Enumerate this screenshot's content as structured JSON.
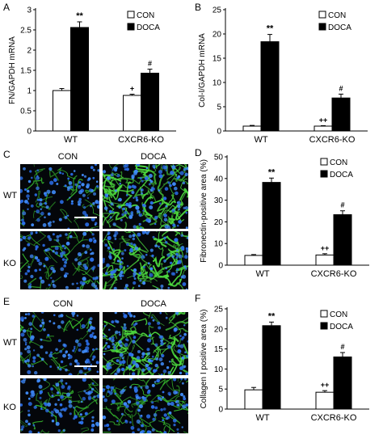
{
  "panel_letters": [
    "A",
    "B",
    "C",
    "D",
    "E",
    "F"
  ],
  "micrographs": {
    "C": {
      "col_labels": [
        "CON",
        "DOCA"
      ],
      "row_labels": [
        "WT",
        "KO"
      ]
    },
    "E": {
      "col_labels": [
        "CON",
        "DOCA"
      ],
      "row_labels": [
        "WT",
        "KO"
      ]
    }
  },
  "chart_data": [
    {
      "panel": "A",
      "type": "bar",
      "categories": [
        "WT",
        "CXCR6-KO"
      ],
      "series": [
        {
          "name": "CON",
          "values": [
            1.0,
            0.88
          ],
          "errors": [
            0.05,
            0.03
          ],
          "fill": "#ffffff"
        },
        {
          "name": "DOCA",
          "values": [
            2.56,
            1.43
          ],
          "errors": [
            0.14,
            0.1
          ],
          "fill": "#000000"
        }
      ],
      "ylabel": "FN/GAPDH mRNA",
      "ylim": [
        0,
        3
      ],
      "yticks": [
        0,
        0.5,
        1,
        1.5,
        2,
        2.5,
        3
      ],
      "yticklabels": [
        "0",
        "0.5",
        "1",
        "1.5",
        "2",
        "2.5",
        "3"
      ],
      "annotations": [
        {
          "category": 0,
          "series": 1,
          "text": "**"
        },
        {
          "category": 1,
          "series": 0,
          "text": "+"
        },
        {
          "category": 1,
          "series": 1,
          "text": "#"
        }
      ],
      "legend": "top-right"
    },
    {
      "panel": "B",
      "type": "bar",
      "categories": [
        "WT",
        "CXCR6-KO"
      ],
      "series": [
        {
          "name": "CON",
          "values": [
            1.0,
            1.0
          ],
          "errors": [
            0.15,
            0.1
          ],
          "fill": "#ffffff"
        },
        {
          "name": "DOCA",
          "values": [
            18.4,
            6.8
          ],
          "errors": [
            1.5,
            0.8
          ],
          "fill": "#000000"
        }
      ],
      "ylabel": "Col-I/GAPDH mRNA",
      "ylim": [
        0,
        25
      ],
      "yticks": [
        0,
        5,
        10,
        15,
        20,
        25
      ],
      "yticklabels": [
        "0",
        "5",
        "10",
        "15",
        "20",
        "25"
      ],
      "annotations": [
        {
          "category": 0,
          "series": 1,
          "text": "**"
        },
        {
          "category": 1,
          "series": 0,
          "text": "++"
        },
        {
          "category": 1,
          "series": 1,
          "text": "#"
        }
      ],
      "legend": "top-right"
    },
    {
      "panel": "D",
      "type": "bar",
      "categories": [
        "WT",
        "CXCR6-KO"
      ],
      "series": [
        {
          "name": "CON",
          "values": [
            4.5,
            4.7
          ],
          "errors": [
            0.4,
            0.6
          ],
          "fill": "#ffffff"
        },
        {
          "name": "DOCA",
          "values": [
            38.2,
            23.3
          ],
          "errors": [
            2.0,
            1.8
          ],
          "fill": "#000000"
        }
      ],
      "ylabel": "Fibronectin-positive area (%)",
      "ylim": [
        0,
        50
      ],
      "yticks": [
        0,
        10,
        20,
        30,
        40,
        50
      ],
      "yticklabels": [
        "0",
        "10",
        "20",
        "30",
        "40",
        "50"
      ],
      "annotations": [
        {
          "category": 0,
          "series": 1,
          "text": "**"
        },
        {
          "category": 1,
          "series": 0,
          "text": "++"
        },
        {
          "category": 1,
          "series": 1,
          "text": "#"
        }
      ],
      "legend": "top-right"
    },
    {
      "panel": "F",
      "type": "bar",
      "categories": [
        "WT",
        "CXCR6-KO"
      ],
      "series": [
        {
          "name": "CON",
          "values": [
            4.8,
            4.2
          ],
          "errors": [
            0.6,
            0.4
          ],
          "fill": "#ffffff"
        },
        {
          "name": "DOCA",
          "values": [
            20.8,
            13.0
          ],
          "errors": [
            0.9,
            1.1
          ],
          "fill": "#000000"
        }
      ],
      "ylabel": "Collagen I positive area (%)",
      "ylim": [
        0,
        25
      ],
      "yticks": [
        0,
        5,
        10,
        15,
        20,
        25
      ],
      "yticklabels": [
        "0",
        "5",
        "10",
        "15",
        "20",
        "25"
      ],
      "annotations": [
        {
          "category": 0,
          "series": 1,
          "text": "**"
        },
        {
          "category": 1,
          "series": 0,
          "text": "++"
        },
        {
          "category": 1,
          "series": 1,
          "text": "#"
        }
      ],
      "legend": "top-right"
    }
  ]
}
